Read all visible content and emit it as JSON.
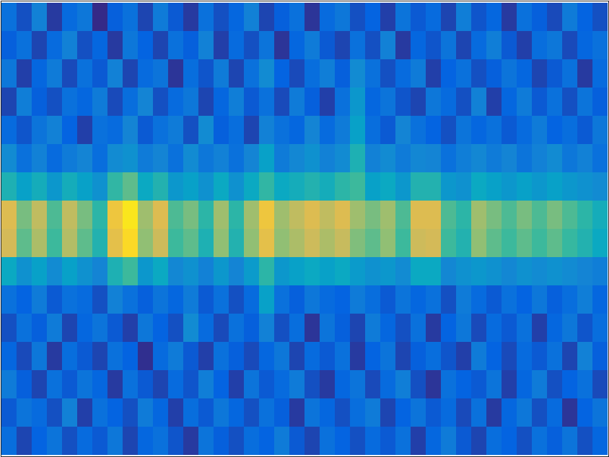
{
  "chart_data": {
    "type": "heatmap",
    "tick_labels": false,
    "zlim": [
      0.15,
      1
    ],
    "z": [
      [
        0.3,
        0.22,
        0.35,
        0.18,
        0.28,
        0.32,
        0.15,
        0.25,
        0.3,
        0.2,
        0.33,
        0.24,
        0.18,
        0.3,
        0.22,
        0.27,
        0.35,
        0.2,
        0.25,
        0.3,
        0.17,
        0.28,
        0.32,
        0.22,
        0.26,
        0.19,
        0.31,
        0.24,
        0.28,
        0.2,
        0.34,
        0.23,
        0.27,
        0.18,
        0.3,
        0.25,
        0.21,
        0.33,
        0.26,
        0.22
      ],
      [
        0.25,
        0.3,
        0.2,
        0.28,
        0.35,
        0.22,
        0.27,
        0.18,
        0.32,
        0.26,
        0.2,
        0.3,
        0.25,
        0.35,
        0.19,
        0.28,
        0.22,
        0.31,
        0.17,
        0.27,
        0.33,
        0.24,
        0.2,
        0.3,
        0.22,
        0.35,
        0.18,
        0.27,
        0.23,
        0.31,
        0.2,
        0.28,
        0.34,
        0.24,
        0.19,
        0.29,
        0.32,
        0.21,
        0.27,
        0.3
      ],
      [
        0.32,
        0.19,
        0.27,
        0.33,
        0.21,
        0.3,
        0.24,
        0.35,
        0.2,
        0.28,
        0.31,
        0.17,
        0.29,
        0.23,
        0.33,
        0.2,
        0.3,
        0.38,
        0.26,
        0.21,
        0.29,
        0.34,
        0.25,
        0.38,
        0.3,
        0.22,
        0.28,
        0.33,
        0.19,
        0.26,
        0.3,
        0.22,
        0.25,
        0.31,
        0.27,
        0.2,
        0.24,
        0.3,
        0.18,
        0.28
      ],
      [
        0.2,
        0.34,
        0.25,
        0.22,
        0.3,
        0.27,
        0.33,
        0.21,
        0.29,
        0.36,
        0.22,
        0.28,
        0.32,
        0.2,
        0.27,
        0.34,
        0.24,
        0.3,
        0.21,
        0.33,
        0.25,
        0.19,
        0.3,
        0.42,
        0.27,
        0.31,
        0.23,
        0.2,
        0.32,
        0.28,
        0.22,
        0.35,
        0.19,
        0.27,
        0.33,
        0.24,
        0.3,
        0.22,
        0.31,
        0.25
      ],
      [
        0.28,
        0.23,
        0.31,
        0.35,
        0.26,
        0.19,
        0.3,
        0.28,
        0.36,
        0.24,
        0.3,
        0.33,
        0.22,
        0.38,
        0.25,
        0.29,
        0.2,
        0.35,
        0.3,
        0.27,
        0.36,
        0.28,
        0.33,
        0.45,
        0.29,
        0.24,
        0.36,
        0.3,
        0.26,
        0.22,
        0.31,
        0.27,
        0.3,
        0.24,
        0.28,
        0.33,
        0.26,
        0.29,
        0.24,
        0.32
      ],
      [
        0.38,
        0.3,
        0.35,
        0.28,
        0.33,
        0.36,
        0.29,
        0.38,
        0.4,
        0.33,
        0.36,
        0.3,
        0.38,
        0.32,
        0.35,
        0.3,
        0.36,
        0.45,
        0.33,
        0.37,
        0.4,
        0.35,
        0.38,
        0.52,
        0.35,
        0.38,
        0.33,
        0.37,
        0.36,
        0.3,
        0.34,
        0.37,
        0.33,
        0.36,
        0.31,
        0.35,
        0.38,
        0.32,
        0.35,
        0.3
      ],
      [
        0.52,
        0.45,
        0.5,
        0.42,
        0.5,
        0.45,
        0.4,
        0.56,
        0.62,
        0.48,
        0.53,
        0.42,
        0.45,
        0.4,
        0.48,
        0.4,
        0.48,
        0.56,
        0.48,
        0.5,
        0.53,
        0.5,
        0.55,
        0.58,
        0.45,
        0.48,
        0.42,
        0.53,
        0.53,
        0.42,
        0.4,
        0.48,
        0.45,
        0.42,
        0.45,
        0.42,
        0.45,
        0.42,
        0.4,
        0.38
      ],
      [
        0.8,
        0.65,
        0.75,
        0.6,
        0.75,
        0.65,
        0.55,
        0.85,
        0.95,
        0.7,
        0.8,
        0.6,
        0.65,
        0.55,
        0.7,
        0.55,
        0.7,
        0.85,
        0.7,
        0.75,
        0.8,
        0.75,
        0.8,
        0.7,
        0.65,
        0.7,
        0.6,
        0.8,
        0.8,
        0.6,
        0.55,
        0.7,
        0.65,
        0.6,
        0.65,
        0.6,
        0.65,
        0.6,
        0.55,
        0.5
      ],
      [
        0.78,
        0.62,
        0.72,
        0.58,
        0.73,
        0.62,
        0.53,
        0.82,
        0.92,
        0.68,
        0.77,
        0.58,
        0.62,
        0.52,
        0.68,
        0.53,
        0.68,
        0.82,
        0.68,
        0.72,
        0.77,
        0.72,
        0.76,
        0.66,
        0.62,
        0.68,
        0.58,
        0.77,
        0.78,
        0.58,
        0.53,
        0.68,
        0.62,
        0.58,
        0.62,
        0.58,
        0.62,
        0.57,
        0.53,
        0.48
      ],
      [
        0.48,
        0.4,
        0.45,
        0.38,
        0.45,
        0.4,
        0.36,
        0.52,
        0.58,
        0.42,
        0.48,
        0.37,
        0.4,
        0.35,
        0.42,
        0.36,
        0.43,
        0.55,
        0.42,
        0.45,
        0.48,
        0.45,
        0.48,
        0.43,
        0.4,
        0.42,
        0.38,
        0.48,
        0.48,
        0.37,
        0.4,
        0.42,
        0.4,
        0.37,
        0.4,
        0.38,
        0.4,
        0.38,
        0.36,
        0.34
      ],
      [
        0.3,
        0.26,
        0.33,
        0.24,
        0.3,
        0.28,
        0.22,
        0.35,
        0.3,
        0.25,
        0.31,
        0.27,
        0.33,
        0.24,
        0.3,
        0.22,
        0.28,
        0.45,
        0.3,
        0.25,
        0.32,
        0.28,
        0.26,
        0.33,
        0.29,
        0.24,
        0.31,
        0.27,
        0.3,
        0.22,
        0.33,
        0.28,
        0.24,
        0.3,
        0.26,
        0.32,
        0.25,
        0.29,
        0.34,
        0.27
      ],
      [
        0.22,
        0.3,
        0.25,
        0.33,
        0.2,
        0.27,
        0.31,
        0.24,
        0.19,
        0.32,
        0.26,
        0.22,
        0.38,
        0.28,
        0.21,
        0.3,
        0.25,
        0.35,
        0.22,
        0.29,
        0.17,
        0.31,
        0.25,
        0.2,
        0.33,
        0.27,
        0.22,
        0.3,
        0.18,
        0.26,
        0.32,
        0.21,
        0.28,
        0.24,
        0.3,
        0.19,
        0.27,
        0.32,
        0.23,
        0.29
      ],
      [
        0.27,
        0.21,
        0.32,
        0.18,
        0.29,
        0.24,
        0.2,
        0.3,
        0.26,
        0.16,
        0.28,
        0.33,
        0.24,
        0.19,
        0.3,
        0.25,
        0.21,
        0.27,
        0.32,
        0.2,
        0.28,
        0.24,
        0.3,
        0.18,
        0.26,
        0.31,
        0.2,
        0.25,
        0.29,
        0.23,
        0.19,
        0.33,
        0.26,
        0.21,
        0.28,
        0.24,
        0.3,
        0.2,
        0.35,
        0.25
      ],
      [
        0.33,
        0.25,
        0.2,
        0.3,
        0.24,
        0.31,
        0.27,
        0.18,
        0.3,
        0.24,
        0.2,
        0.28,
        0.23,
        0.34,
        0.26,
        0.19,
        0.31,
        0.24,
        0.28,
        0.33,
        0.22,
        0.18,
        0.27,
        0.31,
        0.21,
        0.28,
        0.34,
        0.22,
        0.17,
        0.3,
        0.26,
        0.24,
        0.31,
        0.19,
        0.27,
        0.33,
        0.22,
        0.26,
        0.3,
        0.21
      ],
      [
        0.24,
        0.31,
        0.28,
        0.22,
        0.35,
        0.19,
        0.3,
        0.26,
        0.22,
        0.33,
        0.27,
        0.19,
        0.29,
        0.24,
        0.32,
        0.27,
        0.22,
        0.3,
        0.25,
        0.18,
        0.31,
        0.27,
        0.22,
        0.29,
        0.33,
        0.2,
        0.26,
        0.31,
        0.24,
        0.28,
        0.21,
        0.3,
        0.18,
        0.27,
        0.32,
        0.22,
        0.28,
        0.17,
        0.26,
        0.31
      ],
      [
        0.29,
        0.2,
        0.26,
        0.31,
        0.22,
        0.28,
        0.24,
        0.32,
        0.2,
        0.27,
        0.3,
        0.23,
        0.18,
        0.31,
        0.25,
        0.22,
        0.29,
        0.26,
        0.33,
        0.24,
        0.2,
        0.3,
        0.26,
        0.22,
        0.28,
        0.24,
        0.3,
        0.19,
        0.27,
        0.33,
        0.24,
        0.2,
        0.29,
        0.26,
        0.22,
        0.3,
        0.25,
        0.31,
        0.22,
        0.27
      ]
    ]
  }
}
